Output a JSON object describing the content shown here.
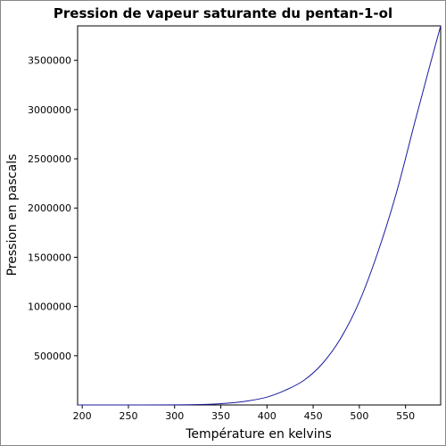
{
  "chart_data": {
    "type": "line",
    "title": "Pression de vapeur saturante du pentan-1-ol",
    "xlabel": "Température en kelvins",
    "ylabel": "Pression en pascals",
    "xlim": [
      195,
      588
    ],
    "ylim": [
      0,
      3850000
    ],
    "x_ticks": [
      200,
      250,
      300,
      350,
      400,
      450,
      500,
      550
    ],
    "y_ticks": [
      500000,
      1000000,
      1500000,
      2000000,
      2500000,
      3000000,
      3500000
    ],
    "grid": false,
    "legend": "none",
    "line_color": "#1a1aa0",
    "series": [
      {
        "x": [
          195,
          250,
          300,
          320,
          340,
          360,
          380,
          400,
          420,
          440,
          460,
          480,
          500,
          520,
          540,
          560,
          575,
          588
        ],
        "y": [
          0,
          0,
          1000,
          3000,
          8000,
          20000,
          42000,
          80000,
          150000,
          250000,
          420000,
          680000,
          1050000,
          1550000,
          2150000,
          2870000,
          3400000,
          3850000
        ]
      }
    ]
  }
}
